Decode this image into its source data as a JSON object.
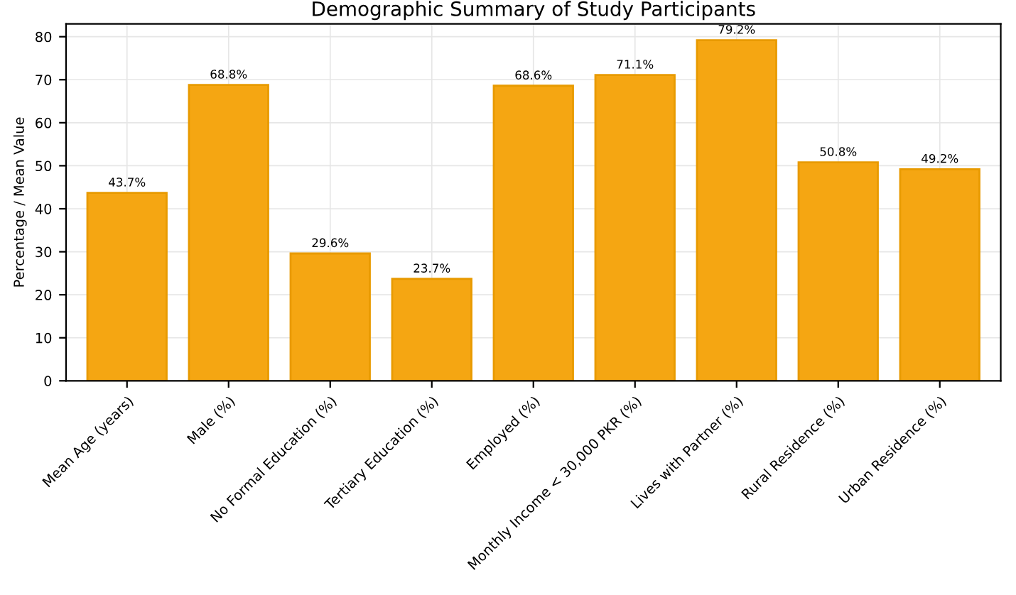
{
  "chart_data": {
    "type": "bar",
    "title": "Demographic Summary of Study Participants",
    "ylabel": "Percentage / Mean Value",
    "categories": [
      "Mean Age (years)",
      "Male (%)",
      "No Formal Education (%)",
      "Tertiary Education (%)",
      "Employed (%)",
      "Monthly Income < 30,000 PKR (%)",
      "Lives with Partner (%)",
      "Rural Residence (%)",
      "Urban Residence (%)"
    ],
    "values": [
      43.7,
      68.8,
      29.6,
      23.7,
      68.6,
      71.1,
      79.2,
      50.8,
      49.2
    ],
    "value_labels": [
      "43.7%",
      "68.8%",
      "29.6%",
      "23.7%",
      "68.6%",
      "71.1%",
      "79.2%",
      "50.8%",
      "49.2%"
    ],
    "color": "#f5a612",
    "ylim": [
      0,
      83
    ],
    "yticks": [
      0,
      10,
      20,
      30,
      40,
      50,
      60,
      70,
      80
    ],
    "grid": true
  }
}
